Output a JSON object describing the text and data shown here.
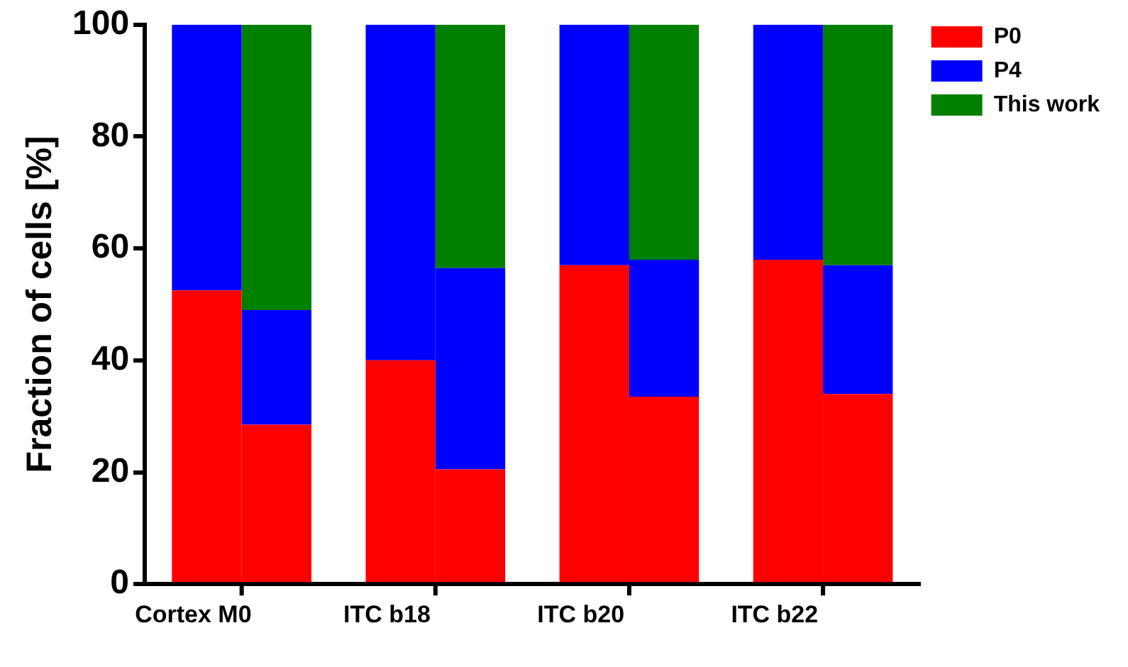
{
  "chart_data": {
    "type": "bar",
    "stacked": true,
    "ylabel": "Fraction of cells [%]",
    "categories": [
      "Cortex M0",
      null,
      "ITC b18",
      null,
      "ITC b20",
      null,
      "ITC b22",
      null
    ],
    "series": [
      {
        "name": "P0",
        "color": "#ff0000",
        "values": [
          52.5,
          28.5,
          40,
          20.5,
          57,
          33.5,
          58,
          34
        ]
      },
      {
        "name": "P4",
        "color": "#0000ff",
        "values": [
          47.5,
          20.5,
          60,
          36,
          43,
          24.5,
          42,
          23
        ]
      },
      {
        "name": "This work",
        "color": "#008000",
        "values": [
          null,
          51,
          null,
          43.5,
          null,
          42,
          null,
          43
        ]
      }
    ],
    "ylim": [
      0,
      100
    ],
    "yticks": [
      0,
      20,
      40,
      60,
      80,
      100
    ],
    "grid": false,
    "legend": "top right"
  }
}
